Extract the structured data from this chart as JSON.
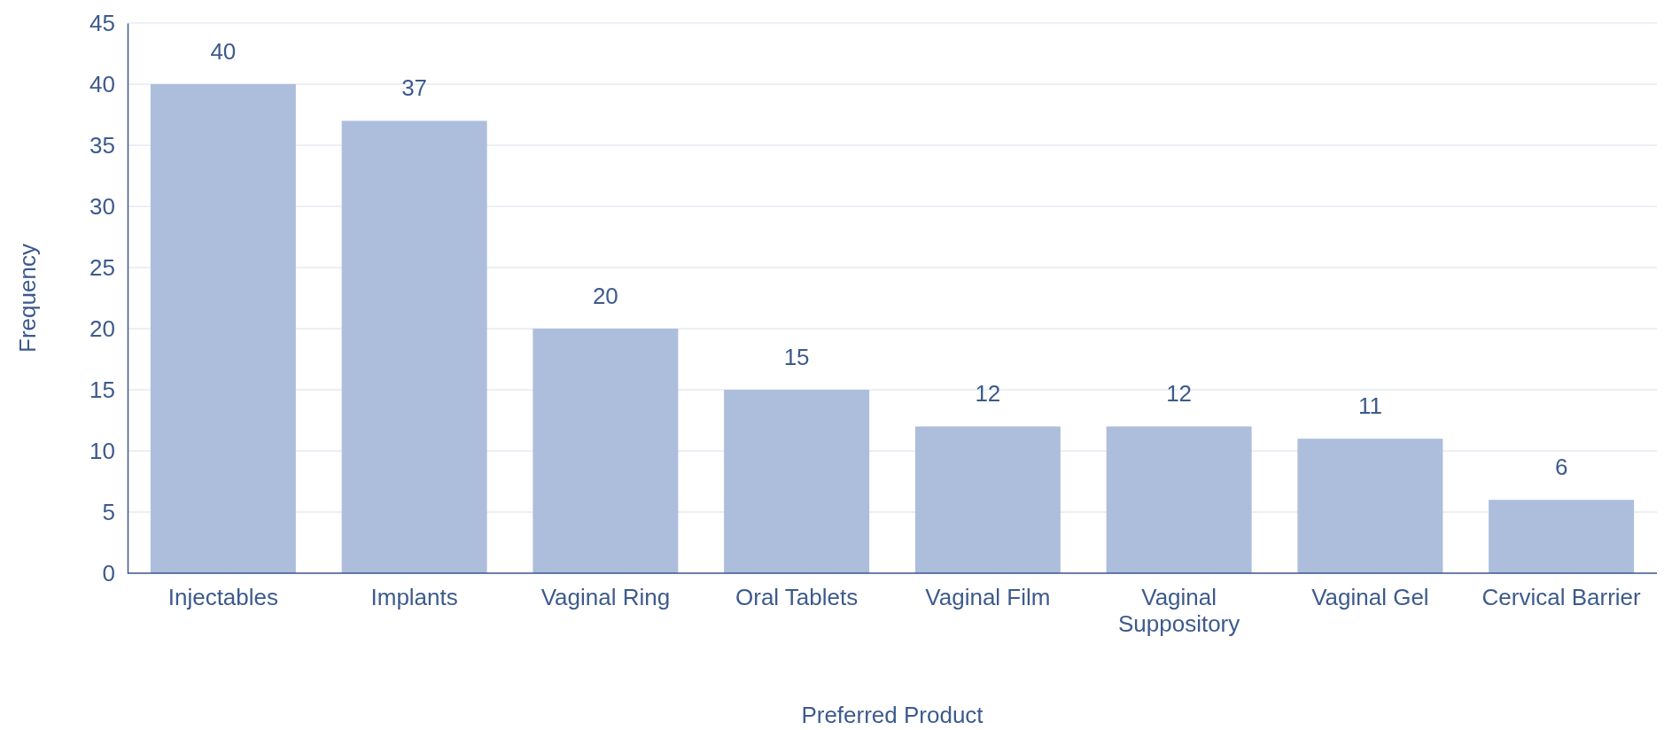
{
  "chart_data": {
    "type": "bar",
    "xlabel": "Preferred Product",
    "ylabel": "Frequency",
    "categories": [
      "Injectables",
      "Implants",
      "Vaginal Ring",
      "Oral Tablets",
      "Vaginal Film",
      "Vaginal Suppository",
      "Vaginal Gel",
      "Cervical Barrier"
    ],
    "values": [
      40,
      37,
      20,
      15,
      12,
      12,
      11,
      6
    ],
    "color": "#adbddc",
    "ylim": [
      0,
      45
    ],
    "yticks": [
      0,
      5,
      10,
      15,
      20,
      25,
      30,
      35,
      40,
      45
    ],
    "grid": "y",
    "data_labels": true
  }
}
